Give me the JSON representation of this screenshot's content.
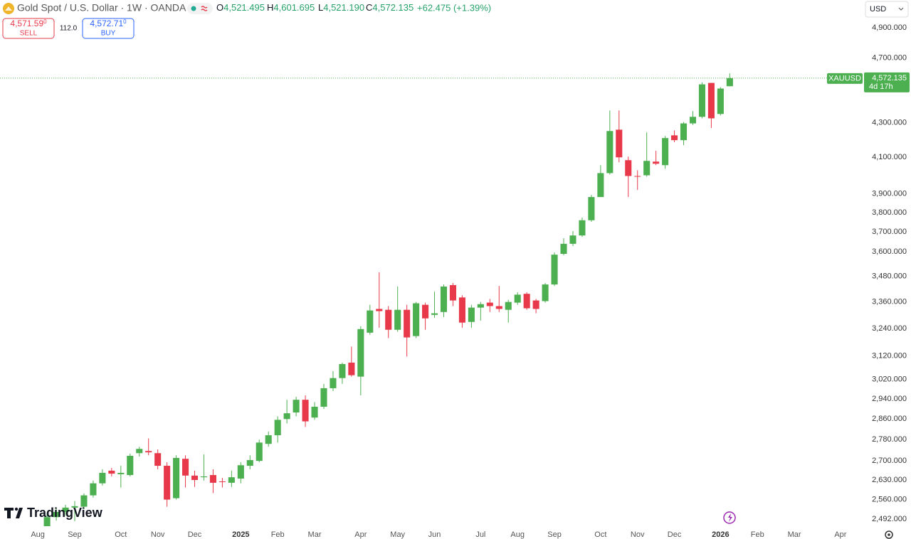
{
  "header": {
    "title": "Gold Spot / U.S. Dollar · 1W · OANDA",
    "ohlc": [
      {
        "label": "O",
        "value": "4,521.495"
      },
      {
        "label": "H",
        "value": "4,601.695"
      },
      {
        "label": "L",
        "value": "4,521.190"
      },
      {
        "label": "C",
        "value": "4,572.135"
      }
    ],
    "change": "+62.475 (+1.39%)",
    "sell": {
      "price": "4,571.59",
      "sup": "0",
      "label": "SELL"
    },
    "spread": "112.0",
    "buy": {
      "price": "4,572.71",
      "sup": "0",
      "label": "BUY"
    },
    "currency": "USD",
    "brand": "TradingView"
  },
  "chart_data": {
    "type": "candlestick",
    "log_scale": true,
    "grid": false,
    "up_color": "#4caf50",
    "down_color": "#e8394a",
    "symbol": "XAUUSD",
    "last_price": {
      "value": 4572.135,
      "label": "4,572.135"
    },
    "countdown": "4d 17h",
    "xlim": [
      -5.1,
      88.4
    ],
    "xticks": [
      {
        "value": -1,
        "label": "Aug"
      },
      {
        "value": 3,
        "label": "Sep"
      },
      {
        "value": 8,
        "label": "Oct"
      },
      {
        "value": 12,
        "label": "Nov"
      },
      {
        "value": 16,
        "label": "Dec"
      },
      {
        "value": 21,
        "label": "2025"
      },
      {
        "value": 25,
        "label": "Feb"
      },
      {
        "value": 29,
        "label": "Mar"
      },
      {
        "value": 34,
        "label": "Apr"
      },
      {
        "value": 38,
        "label": "May"
      },
      {
        "value": 42,
        "label": "Jun"
      },
      {
        "value": 47,
        "label": "Jul"
      },
      {
        "value": 51,
        "label": "Aug"
      },
      {
        "value": 55,
        "label": "Sep"
      },
      {
        "value": 60,
        "label": "Oct"
      },
      {
        "value": 64,
        "label": "Nov"
      },
      {
        "value": 68,
        "label": "Dec"
      },
      {
        "value": 73,
        "label": "2026"
      },
      {
        "value": 77,
        "label": "Feb"
      },
      {
        "value": 81,
        "label": "Mar"
      },
      {
        "value": 86,
        "label": "Apr"
      }
    ],
    "ylim": [
      2468,
      5091
    ],
    "yticks": [
      {
        "value": 4900,
        "label": "4,900.000"
      },
      {
        "value": 4700,
        "label": "4,700.000"
      },
      {
        "value": 4300,
        "label": "4,300.000"
      },
      {
        "value": 4100,
        "label": "4,100.000"
      },
      {
        "value": 3900,
        "label": "3,900.000"
      },
      {
        "value": 3800,
        "label": "3,800.000"
      },
      {
        "value": 3700,
        "label": "3,700.000"
      },
      {
        "value": 3600,
        "label": "3,600.000"
      },
      {
        "value": 3480,
        "label": "3,480.000"
      },
      {
        "value": 3360,
        "label": "3,360.000"
      },
      {
        "value": 3240,
        "label": "3,240.000"
      },
      {
        "value": 3120,
        "label": "3,120.000"
      },
      {
        "value": 3020,
        "label": "3,020.000"
      },
      {
        "value": 2940,
        "label": "2,940.000"
      },
      {
        "value": 2860,
        "label": "2,860.000"
      },
      {
        "value": 2780,
        "label": "2,780.000"
      },
      {
        "value": 2700,
        "label": "2,700.000"
      },
      {
        "value": 2630,
        "label": "2,630.000"
      },
      {
        "value": 2560,
        "label": "2,560.000"
      },
      {
        "value": 2492,
        "label": "2,492.000"
      }
    ],
    "open": [
      2468,
      2499,
      2517,
      2532,
      2535,
      2575,
      2618,
      2664,
      2651,
      2648,
      2729,
      2737,
      2729,
      2682,
      2565,
      2708,
      2646,
      2640,
      2648,
      2625,
      2620,
      2635,
      2682,
      2700,
      2764,
      2797,
      2860,
      2886,
      2937,
      2866,
      2909,
      2984,
      3026,
      3091,
      3032,
      3221,
      3328,
      3324,
      3234,
      3324,
      3206,
      3347,
      3301,
      3314,
      3439,
      3381,
      3269,
      3334,
      3357,
      3341,
      3324,
      3357,
      3398,
      3367,
      3364,
      3442,
      3590,
      3640,
      3682,
      3760,
      3882,
      4012,
      4259,
      4084,
      3996,
      4000,
      4076,
      4056,
      4226,
      4198,
      4296,
      4335,
      4542,
      4352,
      4521.495
    ],
    "high": [
      2512,
      2530,
      2542,
      2555,
      2582,
      2628,
      2669,
      2674,
      2682,
      2727,
      2753,
      2785,
      2743,
      2695,
      2721,
      2721,
      2664,
      2724,
      2669,
      2638,
      2664,
      2695,
      2721,
      2780,
      2811,
      2871,
      2937,
      2949,
      2955,
      2928,
      3002,
      3055,
      3091,
      3160,
      3250,
      3347,
      3500,
      3341,
      3432,
      3347,
      3360,
      3357,
      3408,
      3442,
      3449,
      3391,
      3347,
      3360,
      3374,
      3435,
      3370,
      3405,
      3405,
      3374,
      3449,
      3597,
      3668,
      3704,
      3774,
      3893,
      4056,
      4373,
      4373,
      4104,
      4028,
      4243,
      4137,
      4222,
      4255,
      4304,
      4369,
      4546,
      4542,
      4516,
      4601.695
    ],
    "low": [
      2456,
      2487,
      2504,
      2485,
      2527,
      2567,
      2610,
      2643,
      2603,
      2643,
      2716,
      2721,
      2669,
      2535,
      2560,
      2603,
      2605,
      2628,
      2583,
      2603,
      2605,
      2618,
      2669,
      2695,
      2753,
      2769,
      2843,
      2871,
      2829,
      2857,
      2900,
      2972,
      3002,
      3032,
      2955,
      3212,
      3243,
      3197,
      3225,
      3117,
      3197,
      3234,
      3288,
      3291,
      3341,
      3243,
      3243,
      3275,
      3314,
      3314,
      3266,
      3347,
      3324,
      3308,
      3357,
      3435,
      3583,
      3629,
      3675,
      3752,
      3882,
      4004,
      4072,
      3882,
      3920,
      3992,
      4056,
      4036,
      4186,
      4169,
      4287,
      4326,
      4269,
      4343,
      4521.19
    ],
    "close": [
      2499,
      2517,
      2532,
      2537,
      2575,
      2618,
      2656,
      2653,
      2656,
      2719,
      2745,
      2732,
      2682,
      2560,
      2711,
      2646,
      2630,
      2643,
      2620,
      2623,
      2640,
      2684,
      2703,
      2769,
      2797,
      2857,
      2883,
      2937,
      2851,
      2909,
      2984,
      3026,
      3085,
      3038,
      3237,
      3321,
      3318,
      3234,
      3324,
      3200,
      3354,
      3285,
      3308,
      3432,
      3367,
      3266,
      3334,
      3350,
      3341,
      3328,
      3360,
      3394,
      3331,
      3328,
      3442,
      3586,
      3640,
      3682,
      3760,
      3882,
      4012,
      4251,
      4100,
      3996,
      3992,
      4080,
      4064,
      4210,
      4198,
      4296,
      4335,
      4533,
      4326,
      4507,
      4572.135
    ]
  }
}
